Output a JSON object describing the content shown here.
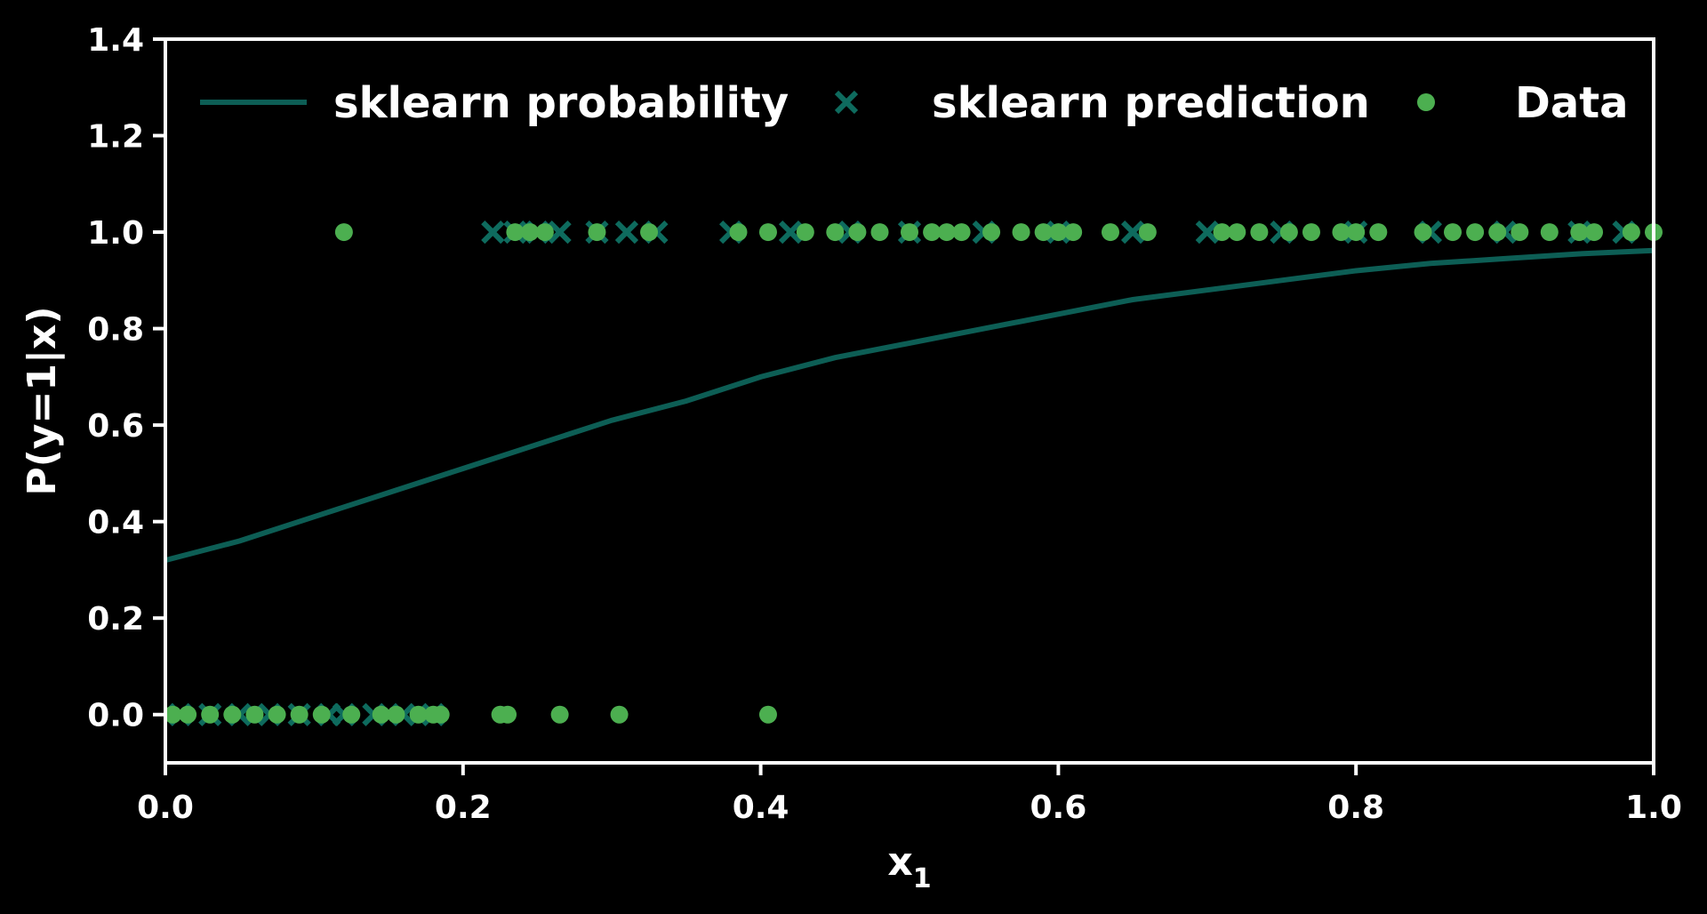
{
  "chart_data": {
    "type": "scatter",
    "title": "",
    "xlabel": "x",
    "xlabel_sub": "1",
    "ylabel": "P(y=1|x)",
    "xlim": [
      0.0,
      1.0
    ],
    "ylim": [
      -0.1,
      1.4
    ],
    "xticks": [
      0.0,
      0.2,
      0.4,
      0.6,
      0.8,
      1.0
    ],
    "xtick_labels": [
      "0.0",
      "0.2",
      "0.4",
      "0.6",
      "0.8",
      "1.0"
    ],
    "yticks": [
      0.0,
      0.2,
      0.4,
      0.6,
      0.8,
      1.0,
      1.2,
      1.4
    ],
    "ytick_labels": [
      "0.0",
      "0.2",
      "0.4",
      "0.6",
      "0.8",
      "1.0",
      "1.2",
      "1.4"
    ],
    "grid": false,
    "legend_position": "top",
    "colors": {
      "background": "#000000",
      "axes": "#ffffff",
      "probability_line": "#0d5e55",
      "prediction_marker": "#0e6b5e",
      "data_marker": "#4caf50"
    },
    "series": [
      {
        "name": "sklearn probability",
        "kind": "line",
        "x": [
          0.0,
          0.05,
          0.1,
          0.15,
          0.2,
          0.25,
          0.3,
          0.35,
          0.4,
          0.45,
          0.5,
          0.55,
          0.6,
          0.65,
          0.7,
          0.75,
          0.8,
          0.85,
          0.9,
          0.95,
          1.0
        ],
        "y": [
          0.32,
          0.36,
          0.41,
          0.46,
          0.51,
          0.56,
          0.61,
          0.65,
          0.7,
          0.74,
          0.77,
          0.8,
          0.83,
          0.86,
          0.88,
          0.9,
          0.92,
          0.935,
          0.945,
          0.955,
          0.962
        ]
      },
      {
        "name": "sklearn prediction",
        "kind": "x-marker",
        "x": [
          0.01,
          0.03,
          0.05,
          0.07,
          0.09,
          0.11,
          0.12,
          0.14,
          0.16,
          0.18,
          0.22,
          0.235,
          0.25,
          0.265,
          0.29,
          0.31,
          0.33,
          0.38,
          0.42,
          0.46,
          0.5,
          0.55,
          0.6,
          0.65,
          0.7,
          0.75,
          0.8,
          0.85,
          0.9,
          0.95,
          0.98
        ],
        "y": [
          0,
          0,
          0,
          0,
          0,
          0,
          0,
          0,
          0,
          0,
          1,
          1,
          1,
          1,
          1,
          1,
          1,
          1,
          1,
          1,
          1,
          1,
          1,
          1,
          1,
          1,
          1,
          1,
          1,
          1,
          1
        ]
      },
      {
        "name": "Data",
        "kind": "point",
        "x": [
          0.005,
          0.015,
          0.03,
          0.045,
          0.06,
          0.075,
          0.09,
          0.105,
          0.125,
          0.145,
          0.155,
          0.17,
          0.18,
          0.185,
          0.225,
          0.23,
          0.265,
          0.305,
          0.405,
          0.12,
          0.235,
          0.245,
          0.255,
          0.29,
          0.325,
          0.385,
          0.405,
          0.43,
          0.45,
          0.465,
          0.48,
          0.5,
          0.515,
          0.525,
          0.535,
          0.555,
          0.575,
          0.59,
          0.6,
          0.61,
          0.635,
          0.66,
          0.71,
          0.72,
          0.735,
          0.755,
          0.77,
          0.79,
          0.8,
          0.815,
          0.845,
          0.865,
          0.88,
          0.895,
          0.91,
          0.93,
          0.95,
          0.96,
          0.985,
          1.0
        ],
        "y": [
          0,
          0,
          0,
          0,
          0,
          0,
          0,
          0,
          0,
          0,
          0,
          0,
          0,
          0,
          0,
          0,
          0,
          0,
          0,
          1,
          1,
          1,
          1,
          1,
          1,
          1,
          1,
          1,
          1,
          1,
          1,
          1,
          1,
          1,
          1,
          1,
          1,
          1,
          1,
          1,
          1,
          1,
          1,
          1,
          1,
          1,
          1,
          1,
          1,
          1,
          1,
          1,
          1,
          1,
          1,
          1,
          1,
          1,
          1,
          1
        ]
      }
    ]
  }
}
